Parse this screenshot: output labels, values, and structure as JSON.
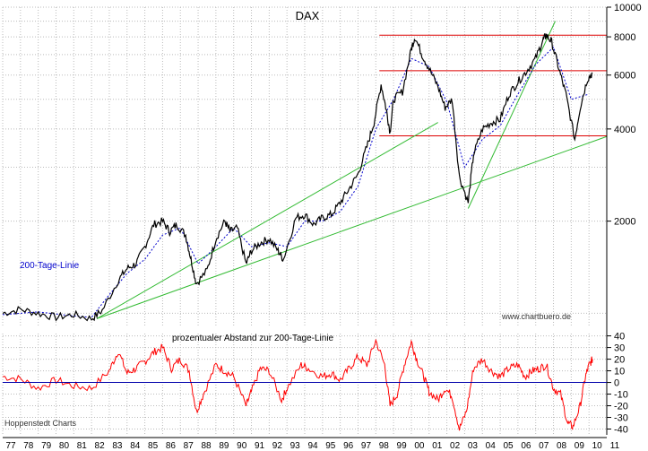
{
  "chart_data": [
    {
      "type": "line",
      "title": "DAX",
      "scale": "log",
      "ylim": [
        900,
        10000
      ],
      "y_ticks": [
        4000,
        6000,
        8000,
        10000,
        2000
      ],
      "y_tick_labels": [
        "4000",
        "6000",
        "8000",
        "10000",
        "2000"
      ],
      "x_tick_labels": [
        "77",
        "78",
        "79",
        "80",
        "81",
        "82",
        "83",
        "84",
        "85",
        "86",
        "87",
        "88",
        "89",
        "90",
        "91",
        "92",
        "93",
        "94",
        "95",
        "96",
        "97",
        "98",
        "99",
        "00",
        "01",
        "02",
        "03",
        "04",
        "05",
        "06",
        "07",
        "08",
        "09",
        "10",
        "11"
      ],
      "series": [
        {
          "name": "DAX",
          "color": "#000000",
          "x": [
            1977.0,
            1978.0,
            1979.0,
            1980.0,
            1981.0,
            1982.0,
            1982.6,
            1983.5,
            1984.0,
            1984.5,
            1985.0,
            1985.5,
            1986.0,
            1986.4,
            1986.8,
            1987.3,
            1987.6,
            1987.9,
            1988.5,
            1989.0,
            1989.5,
            1989.8,
            1990.2,
            1990.7,
            1991.0,
            1991.5,
            1992.0,
            1992.5,
            1992.8,
            1993.5,
            1994.0,
            1994.5,
            1995.0,
            1995.5,
            1996.0,
            1996.5,
            1997.0,
            1997.5,
            1997.9,
            1998.3,
            1998.6,
            1998.8,
            1999.0,
            1999.5,
            2000.0,
            2000.2,
            2000.6,
            2001.0,
            2001.5,
            2001.9,
            2002.3,
            2002.7,
            2003.2,
            2003.5,
            2004.0,
            2004.5,
            2005.0,
            2005.5,
            2006.0,
            2006.5,
            2007.0,
            2007.4,
            2007.6,
            2007.9,
            2008.3,
            2008.7,
            2009.2,
            2009.5,
            2009.9,
            2010.2
          ],
          "values": [
            1000,
            1030,
            1000,
            970,
            990,
            960,
            1020,
            1280,
            1400,
            1450,
            1650,
            1950,
            2000,
            1850,
            1950,
            1800,
            1500,
            1250,
            1380,
            1750,
            2000,
            1850,
            1900,
            1450,
            1600,
            1700,
            1750,
            1600,
            1500,
            2050,
            2100,
            1950,
            2050,
            2100,
            2300,
            2550,
            2850,
            3500,
            4200,
            5600,
            4600,
            3900,
            5000,
            5300,
            7300,
            8000,
            7000,
            6300,
            5500,
            4700,
            5000,
            2800,
            2300,
            3300,
            4000,
            4200,
            4300,
            5200,
            5700,
            6200,
            6800,
            7800,
            8100,
            7700,
            6300,
            5200,
            3700,
            4700,
            5800,
            6100
          ]
        },
        {
          "name": "200-Tage-Linie",
          "color": "#0000cc",
          "dashed": true,
          "x": [
            1977.0,
            1979.0,
            1981.0,
            1982.0,
            1983.0,
            1984.0,
            1985.0,
            1986.0,
            1987.0,
            1988.0,
            1989.0,
            1990.0,
            1991.0,
            1992.0,
            1993.0,
            1994.0,
            1995.0,
            1996.0,
            1997.0,
            1998.0,
            1999.0,
            2000.0,
            2001.0,
            2002.0,
            2003.0,
            2004.0,
            2005.0,
            2006.0,
            2007.0,
            2008.0,
            2009.0,
            2010.0
          ],
          "values": [
            990,
            1010,
            980,
            970,
            1150,
            1350,
            1500,
            1800,
            1900,
            1450,
            1650,
            1900,
            1650,
            1700,
            1650,
            2000,
            2000,
            2150,
            2600,
            4000,
            5000,
            6800,
            6400,
            4900,
            3000,
            3700,
            4100,
            5200,
            6500,
            7400,
            5000,
            5200
          ]
        }
      ],
      "annotations": [
        {
          "text": "200-Tage-Linie",
          "color": "#0000cc"
        },
        {
          "text": "www.chartbuero.de",
          "color": "#555555"
        },
        {
          "text": "Hoppenstedt Charts",
          "color": "#555555"
        }
      ],
      "horizontal_lines": [
        8100,
        6200,
        3800
      ],
      "trend_lines": [
        {
          "color": "#33bb33",
          "from": [
            1982.3,
            960
          ],
          "to": [
            2001.5,
            4200
          ]
        },
        {
          "color": "#33bb33",
          "from": [
            1982.3,
            960
          ],
          "to": [
            2011.0,
            3780
          ]
        },
        {
          "color": "#33bb33",
          "from": [
            2003.2,
            2200
          ],
          "to": [
            2008.1,
            9000
          ]
        }
      ]
    },
    {
      "type": "line",
      "title": "prozentualer Abstand zur 200-Tage-Linie",
      "ylim": [
        -45,
        42
      ],
      "y_ticks": [
        40,
        30,
        20,
        10,
        0,
        -10,
        -20,
        -30,
        -40
      ],
      "y_tick_labels": [
        "40",
        "30",
        "20",
        "10",
        "0",
        "-10",
        "-20",
        "-30",
        "-40"
      ],
      "baseline": 0,
      "series": [
        {
          "name": "prozentualer Abstand",
          "color": "#ff0000",
          "x": [
            1977.0,
            1978.0,
            1979.0,
            1980.0,
            1981.0,
            1982.0,
            1983.0,
            1983.5,
            1984.0,
            1984.5,
            1985.0,
            1985.5,
            1986.0,
            1986.5,
            1987.0,
            1987.5,
            1987.9,
            1988.3,
            1989.0,
            1989.5,
            1990.0,
            1990.7,
            1991.0,
            1991.5,
            1992.0,
            1992.7,
            1993.0,
            1993.8,
            1994.2,
            1995.0,
            1995.5,
            1996.0,
            1996.5,
            1997.0,
            1997.5,
            1998.0,
            1998.5,
            1998.8,
            1999.2,
            1999.6,
            2000.0,
            2000.3,
            2000.7,
            2001.0,
            2001.5,
            2001.9,
            2002.3,
            2002.7,
            2003.1,
            2003.5,
            2004.0,
            2004.5,
            2005.0,
            2005.5,
            2006.0,
            2006.4,
            2006.8,
            2007.2,
            2007.6,
            2008.0,
            2008.4,
            2008.8,
            2009.1,
            2009.5,
            2009.8,
            2010.0,
            2010.2
          ],
          "values": [
            5,
            3,
            -5,
            2,
            -3,
            -5,
            10,
            27,
            8,
            12,
            18,
            26,
            30,
            12,
            20,
            10,
            -25,
            -10,
            15,
            10,
            5,
            -20,
            -8,
            12,
            10,
            -15,
            -5,
            15,
            12,
            5,
            8,
            2,
            12,
            22,
            15,
            36,
            15,
            -20,
            -10,
            15,
            35,
            20,
            5,
            -8,
            -15,
            -5,
            -12,
            -40,
            -25,
            12,
            20,
            10,
            5,
            12,
            15,
            5,
            10,
            12,
            15,
            -5,
            -10,
            -35,
            -38,
            -20,
            5,
            15,
            20
          ]
        }
      ]
    }
  ]
}
